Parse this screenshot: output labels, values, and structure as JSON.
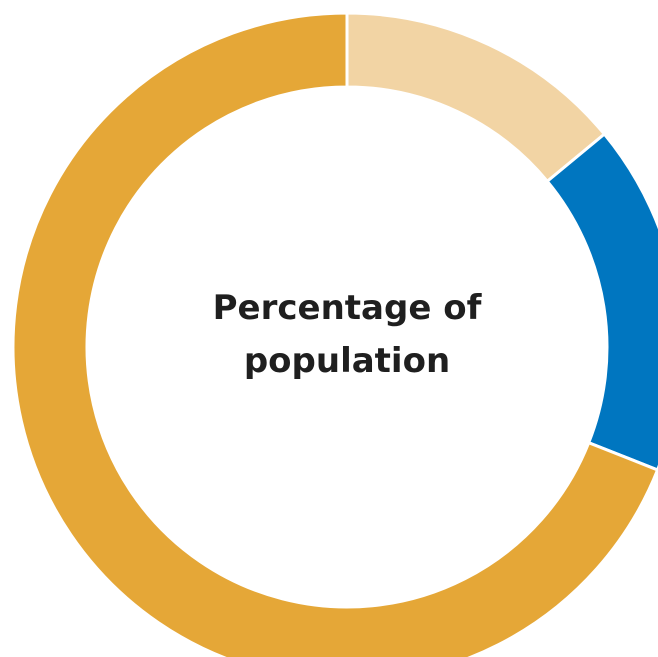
{
  "chart_data": {
    "type": "pie",
    "title": "Percentage of population",
    "title_lines": [
      "Percentage of",
      "population"
    ],
    "donut": true,
    "slices": [
      {
        "value": 14,
        "color": "#f2d4a4"
      },
      {
        "value": 17,
        "color": "#0076c0"
      },
      {
        "value": 69,
        "color": "#e5a737"
      }
    ]
  }
}
